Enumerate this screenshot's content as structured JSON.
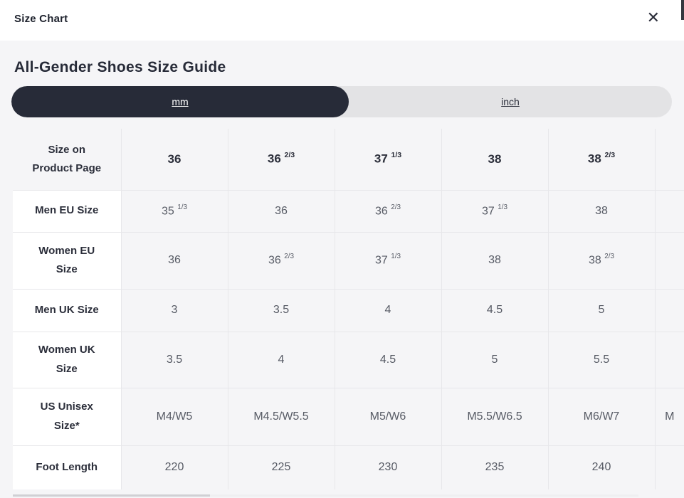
{
  "modal": {
    "title": "Size Chart",
    "close_icon": "✕"
  },
  "guide": {
    "heading": "All-Gender Shoes Size Guide"
  },
  "unit_toggle": {
    "options": [
      {
        "label": "mm",
        "selected": true
      },
      {
        "label": "inch",
        "selected": false
      }
    ]
  },
  "size_table": {
    "corner_header": "Size on Product Page",
    "column_headers": [
      "36",
      "36 2/3",
      "37 1/3",
      "38",
      "38 2/3"
    ],
    "partial_column": {
      "header": "",
      "note_visible_fragment": "M"
    },
    "rows": [
      {
        "label": "Men EU Size",
        "values": [
          "35 1/3",
          "36",
          "36 2/3",
          "37 1/3",
          "38"
        ],
        "partial": ""
      },
      {
        "label": "Women EU Size",
        "values": [
          "36",
          "36 2/3",
          "37 1/3",
          "38",
          "38 2/3"
        ],
        "partial": ""
      },
      {
        "label": "Men UK Size",
        "values": [
          "3",
          "3.5",
          "4",
          "4.5",
          "5"
        ],
        "partial": ""
      },
      {
        "label": "Women UK Size",
        "values": [
          "3.5",
          "4",
          "4.5",
          "5",
          "5.5"
        ],
        "partial": ""
      },
      {
        "label": "US Unisex Size*",
        "values": [
          "M4/W5",
          "M4.5/W5.5",
          "M5/W6",
          "M5.5/W6.5",
          "M6/W7"
        ],
        "partial": "M"
      },
      {
        "label": "Foot Length",
        "values": [
          "220",
          "225",
          "230",
          "235",
          "240"
        ],
        "partial": ""
      }
    ]
  },
  "colors": {
    "accent_dark": "#272b38",
    "selected_text": "#ffffff",
    "body_background": "#f5f5f7",
    "header_background": "#ffffff",
    "grid_line": "#e7e7ea"
  }
}
